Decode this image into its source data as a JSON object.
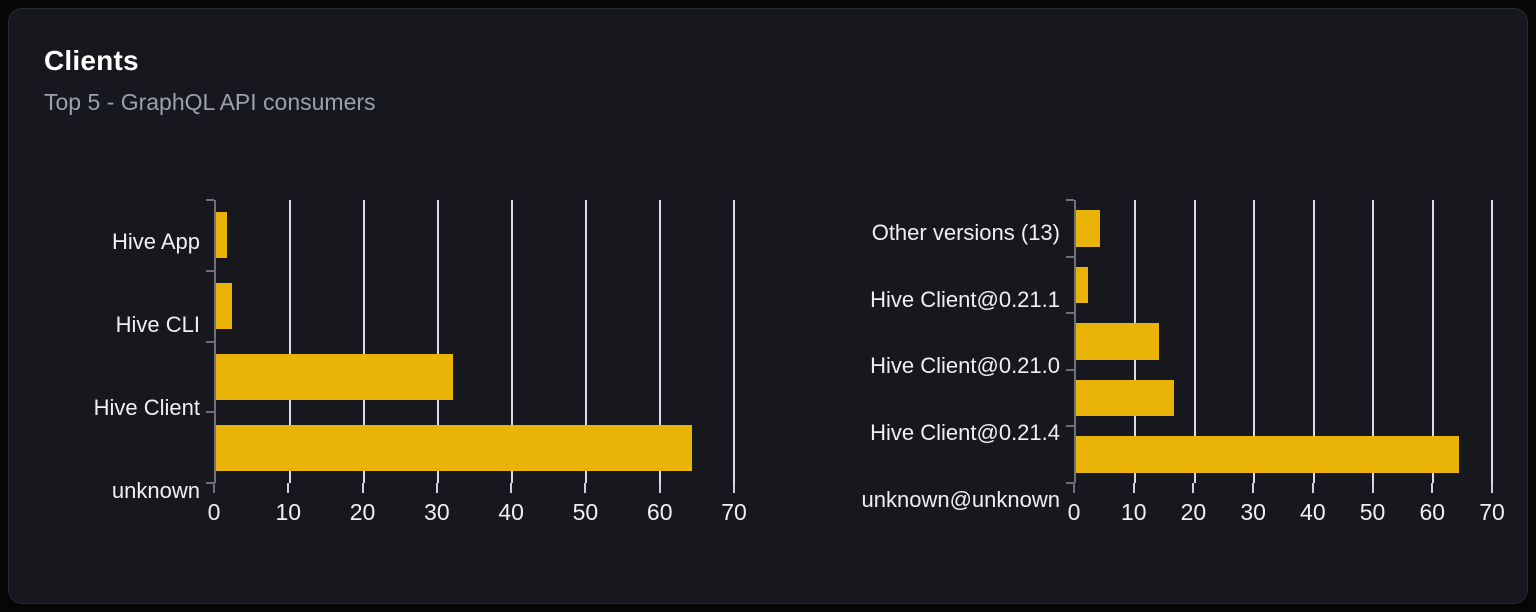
{
  "card": {
    "title": "Clients",
    "subtitle": "Top 5 - GraphQL API consumers"
  },
  "colors": {
    "page_bg": "#060607",
    "card_bg": "#16181d",
    "card_border": "#26292e",
    "title": "#ffffff",
    "subtitle": "#9ba1aa",
    "bar": "#eab308",
    "gridline": "#dadde4",
    "axis_line": "#6e7177",
    "tick": "#ced2d9",
    "axis_label": "#eef0f3"
  },
  "chart_data": [
    {
      "type": "bar",
      "orientation": "horizontal",
      "name": "client-name-chart",
      "categories": [
        "Hive App",
        "Hive CLI",
        "Hive Client",
        "unknown"
      ],
      "category_order": "top-to-bottom",
      "values": [
        1.5,
        2.2,
        32,
        64.3
      ],
      "xlim": [
        0,
        70
      ],
      "xticks": [
        0,
        10,
        20,
        30,
        40,
        50,
        60,
        70
      ],
      "grid": true,
      "legend": "none",
      "bar_color": "#eab308"
    },
    {
      "type": "bar",
      "orientation": "horizontal",
      "name": "client-version-chart",
      "categories": [
        "Other versions (13)",
        "Hive Client@0.21.1",
        "Hive Client@0.21.0",
        "Hive Client@0.21.4",
        "unknown@unknown"
      ],
      "category_order": "top-to-bottom",
      "values": [
        4.1,
        2.0,
        13.9,
        16.5,
        64.4
      ],
      "xlim": [
        0,
        70
      ],
      "xticks": [
        0,
        10,
        20,
        30,
        40,
        50,
        60,
        70
      ],
      "grid": true,
      "legend": "none",
      "bar_color": "#eab308"
    }
  ]
}
